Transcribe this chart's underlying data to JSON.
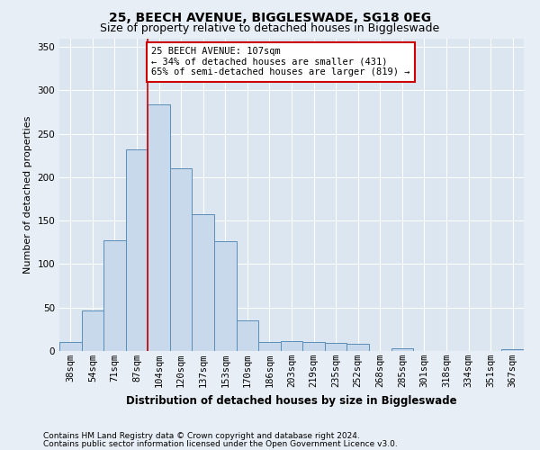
{
  "title1": "25, BEECH AVENUE, BIGGLESWADE, SG18 0EG",
  "title2": "Size of property relative to detached houses in Biggleswade",
  "xlabel": "Distribution of detached houses by size in Biggleswade",
  "ylabel": "Number of detached properties",
  "categories": [
    "38sqm",
    "54sqm",
    "71sqm",
    "87sqm",
    "104sqm",
    "120sqm",
    "137sqm",
    "153sqm",
    "170sqm",
    "186sqm",
    "203sqm",
    "219sqm",
    "235sqm",
    "252sqm",
    "268sqm",
    "285sqm",
    "301sqm",
    "318sqm",
    "334sqm",
    "351sqm",
    "367sqm"
  ],
  "values": [
    10,
    47,
    127,
    232,
    284,
    210,
    157,
    126,
    35,
    10,
    11,
    10,
    9,
    8,
    0,
    3,
    0,
    0,
    0,
    0,
    2
  ],
  "bar_color": "#c9d9ec",
  "bar_edge_color": "#5b8db8",
  "vline_index": 4,
  "vline_color": "#cc0000",
  "annotation_text": "25 BEECH AVENUE: 107sqm\n← 34% of detached houses are smaller (431)\n65% of semi-detached houses are larger (819) →",
  "annotation_box_color": "#ffffff",
  "annotation_box_edge": "#cc0000",
  "ylim": [
    0,
    360
  ],
  "yticks": [
    0,
    50,
    100,
    150,
    200,
    250,
    300,
    350
  ],
  "footnote1": "Contains HM Land Registry data © Crown copyright and database right 2024.",
  "footnote2": "Contains public sector information licensed under the Open Government Licence v3.0.",
  "background_color": "#e8eef5",
  "plot_background": "#dce6f0",
  "title1_fontsize": 10,
  "title2_fontsize": 9,
  "xlabel_fontsize": 8.5,
  "ylabel_fontsize": 8,
  "tick_fontsize": 7.5,
  "footnote_fontsize": 6.5,
  "annot_fontsize": 7.5
}
